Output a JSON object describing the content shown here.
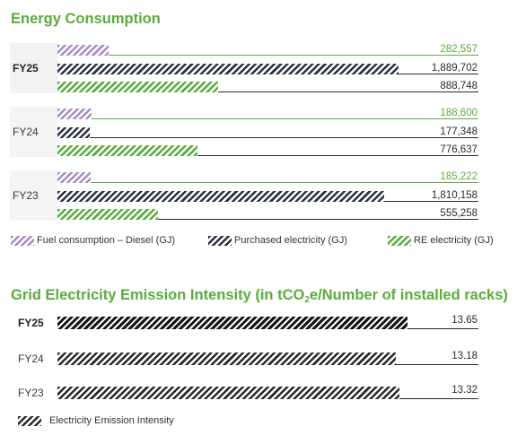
{
  "chart_data": [
    {
      "type": "bar",
      "orientation": "horizontal",
      "title": "Energy Consumption",
      "categories": [
        "FY25",
        "FY24",
        "FY23"
      ],
      "series": [
        {
          "name": "Fuel consumption – Diesel (GJ)",
          "values": [
            282557,
            188600,
            185222
          ],
          "labels": [
            "282,557",
            "188,600",
            "185,222"
          ],
          "color": "#a98bc6"
        },
        {
          "name": "Purchased electricity (GJ)",
          "values": [
            1889702,
            177348,
            1810158
          ],
          "labels": [
            "1,889,702",
            "177,348",
            "1,810,158"
          ],
          "color": "#2a3344"
        },
        {
          "name": "RE electricity (GJ)",
          "values": [
            888748,
            776637,
            555258
          ],
          "labels": [
            "888,748",
            "776,637",
            "555,258"
          ],
          "color": "#5aac3c"
        }
      ],
      "legend_position": "bottom",
      "grid": false
    },
    {
      "type": "bar",
      "orientation": "horizontal",
      "title_pre": "Grid Electricity Emission Intensity (in tCO",
      "title_sub": "2",
      "title_post": "e/Number of installed racks)",
      "categories": [
        "FY25",
        "FY24",
        "FY23"
      ],
      "series": [
        {
          "name": "Electricity Emission Intensity",
          "values": [
            13.65,
            13.18,
            13.32
          ],
          "labels": [
            "13.65",
            "13.18",
            "13.32"
          ],
          "color": "#2a2a2a"
        }
      ],
      "legend_position": "bottom",
      "grid": false
    }
  ]
}
